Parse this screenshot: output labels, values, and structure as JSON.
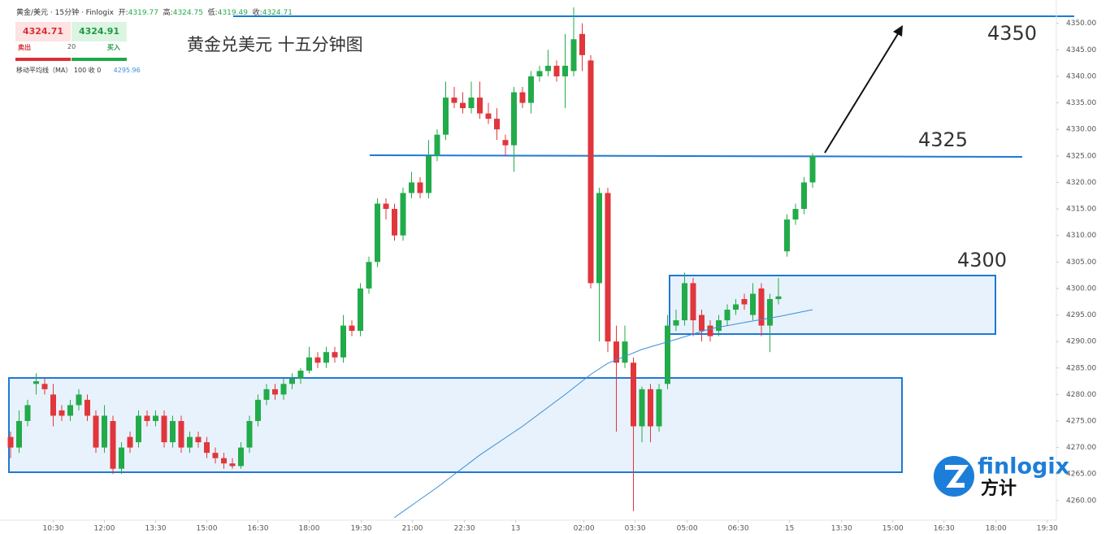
{
  "header": {
    "symbol": "黄金/美元 · 15分钟 · Finlogix",
    "open_label": "开:",
    "open": "4319.77",
    "high_label": "高:",
    "high": "4324.75",
    "low_label": "低:",
    "low": "4319.49",
    "close_label": "收:",
    "close": "4324.71",
    "sell_price": "4324.71",
    "sell": "卖出",
    "buy_price": "4324.91",
    "buy": "买入",
    "quantity": "20",
    "indicator": "移动平均线（MA） 100 收 0",
    "indicator_value": "4295.96",
    "logo": "finlogix",
    "logo_cn": "方计"
  },
  "chart_data": {
    "type": "candlestick",
    "title": "黄金兑美元 十五分钟图",
    "annotations": [
      "4350",
      "4325",
      "4300"
    ],
    "up_color": "#22ab4a",
    "down_color": "#e0363c",
    "x": [
      0,
      1,
      2,
      3,
      4,
      5,
      6,
      7,
      8,
      9,
      10,
      11,
      12,
      13,
      14,
      15,
      16,
      17,
      18,
      19,
      20,
      21,
      22,
      23,
      24,
      25,
      26,
      27,
      28,
      29,
      30,
      31,
      32,
      33,
      34,
      35,
      36,
      37,
      38,
      39,
      40,
      41,
      42,
      43,
      44,
      45,
      46,
      47,
      48,
      49,
      50,
      51,
      52,
      53,
      54,
      55,
      56,
      57,
      58,
      59,
      60,
      61,
      62,
      63,
      64,
      65,
      66,
      67,
      68,
      69,
      70,
      71,
      72,
      73,
      74,
      75,
      76,
      77,
      78,
      79,
      80,
      81,
      82,
      83,
      84,
      85,
      86,
      87,
      88,
      89,
      90,
      91,
      92,
      93,
      94
    ],
    "open": [
      4272,
      4270,
      4275,
      4282,
      4282,
      4280,
      4277,
      4276,
      4278,
      4279,
      4276,
      4270,
      4275,
      4266,
      4272,
      4271,
      4276,
      4275,
      4276,
      4271,
      4275,
      4270,
      4272,
      4271,
      4269,
      4268,
      4267,
      4266.5,
      4270,
      4275,
      4279,
      4281,
      4280,
      4282,
      4283,
      4284.5,
      4287,
      4286,
      4288,
      4287,
      4293,
      4292,
      4300,
      4305,
      4316,
      4315,
      4310,
      4318,
      4320,
      4318,
      4325,
      4329,
      4336,
      4335,
      4334,
      4336,
      4333,
      4332,
      4328,
      4327,
      4337,
      4335,
      4340,
      4341,
      4342,
      4340,
      4341,
      4348,
      4343,
      4301,
      4318,
      4290,
      4286,
      4286,
      4274,
      4281,
      4274,
      4282,
      4293,
      4294,
      4301,
      4295,
      4293,
      4292,
      4294,
      4296,
      4298,
      4295,
      4300,
      4293,
      4298,
      4307,
      4313,
      4315,
      4320
    ],
    "high": [
      4273,
      4277,
      4279,
      4284,
      4283,
      4282,
      4278,
      4279,
      4281,
      4280,
      4277,
      4278,
      4276,
      4271,
      4273,
      4277,
      4277,
      4277,
      4277,
      4276,
      4276,
      4273,
      4273,
      4272,
      4270,
      4269,
      4268,
      4271,
      4276,
      4280,
      4282,
      4282,
      4283,
      4284,
      4285,
      4289,
      4288,
      4289,
      4289,
      4295,
      4294,
      4301,
      4306,
      4317,
      4317,
      4316,
      4319,
      4322,
      4321,
      4328,
      4330,
      4339,
      4338,
      4337,
      4339,
      4339,
      4335,
      4334,
      4329,
      4338,
      4338,
      4341,
      4342,
      4345,
      4343,
      4348,
      4353,
      4350,
      4344,
      4319,
      4319,
      4293,
      4293,
      4287,
      4281.5,
      4282,
      4282,
      4295,
      4296,
      4303,
      4302,
      4296,
      4294,
      4295,
      4297,
      4298,
      4299,
      4301,
      4301,
      4299,
      4302,
      4314,
      4316,
      4321,
      4325.5
    ],
    "low": [
      4268,
      4269,
      4274,
      4280,
      4280,
      4274,
      4275,
      4275,
      4277,
      4275,
      4269,
      4269,
      4265,
      4265,
      4269,
      4270,
      4274,
      4274,
      4270,
      4270,
      4269,
      4269,
      4270,
      4268,
      4267,
      4266,
      4266,
      4266,
      4269,
      4274,
      4278,
      4279,
      4279,
      4281,
      4282,
      4284,
      4285,
      4285,
      4286,
      4286,
      4291,
      4291,
      4299,
      4304,
      4313,
      4309,
      4309,
      4317,
      4317,
      4317,
      4324,
      4328,
      4334,
      4333,
      4333,
      4332,
      4331,
      4328,
      4325,
      4322,
      4334,
      4333,
      4339,
      4340,
      4339,
      4334,
      4340,
      4341,
      4300,
      4290,
      4288,
      4273,
      4285,
      4258,
      4271,
      4271,
      4273,
      4281,
      4292,
      4293,
      4291,
      4290,
      4290,
      4291,
      4293,
      4295,
      4296,
      4294,
      4291,
      4288,
      4297,
      4306,
      4312,
      4314,
      4319
    ],
    "close": [
      4270,
      4275,
      4278,
      4282.5,
      4281,
      4276,
      4276,
      4278,
      4280,
      4276,
      4270,
      4276,
      4266,
      4270,
      4270,
      4276,
      4275,
      4276,
      4271,
      4275,
      4270,
      4272,
      4271,
      4269,
      4268,
      4267,
      4266.5,
      4270,
      4275,
      4279,
      4281,
      4280,
      4282,
      4283,
      4284.5,
      4287,
      4286,
      4288,
      4287,
      4293,
      4292,
      4300,
      4305,
      4316,
      4315,
      4310,
      4318,
      4320,
      4318,
      4325,
      4329,
      4336,
      4335,
      4334,
      4336,
      4333,
      4332,
      4330,
      4327,
      4337,
      4335,
      4340,
      4341,
      4342,
      4340,
      4342,
      4347,
      4344,
      4301,
      4318,
      4290,
      4286,
      4290,
      4274,
      4281,
      4274,
      4281,
      4293,
      4294,
      4301,
      4294,
      4292,
      4291,
      4294,
      4296,
      4297,
      4297,
      4299,
      4293,
      4298,
      4298.5,
      4313,
      4315,
      4320,
      4325
    ],
    "ma": {
      "color": "#3a8fd6",
      "x": [
        45,
        50,
        55,
        60,
        65,
        68,
        70,
        74,
        78,
        82,
        86,
        90,
        94
      ],
      "values": [
        4256.8,
        4262.5,
        4268.6,
        4274,
        4280,
        4283.8,
        4285.9,
        4288.5,
        4290.4,
        4292.4,
        4293.6,
        4294.7,
        4296
      ]
    },
    "xlim": [
      -1.238,
      122.571
    ],
    "ylim": [
      4256.3,
      4354.4
    ],
    "xticks": [
      {
        "value": 5,
        "label": "10:30"
      },
      {
        "value": 11,
        "label": "12:00"
      },
      {
        "value": 17,
        "label": "13:30"
      },
      {
        "value": 23,
        "label": "15:00"
      },
      {
        "value": 29,
        "label": "16:30"
      },
      {
        "value": 35,
        "label": "18:00"
      },
      {
        "value": 41.1,
        "label": "19:30"
      },
      {
        "value": 47.1,
        "label": "21:00"
      },
      {
        "value": 53.2,
        "label": "22:30"
      },
      {
        "value": 59.2,
        "label": "13"
      },
      {
        "value": 67.2,
        "label": "02:00"
      },
      {
        "value": 73.2,
        "label": "03:30"
      },
      {
        "value": 79.3,
        "label": "05:00"
      },
      {
        "value": 85.3,
        "label": "06:30"
      },
      {
        "value": 91.3,
        "label": "15"
      },
      {
        "value": 97.4,
        "label": "13:30"
      },
      {
        "value": 103.4,
        "label": "15:00"
      },
      {
        "value": 109.4,
        "label": "16:30"
      },
      {
        "value": 115.5,
        "label": "18:00"
      },
      {
        "value": 121.5,
        "label": "19:30"
      }
    ],
    "yticks": [
      {
        "value": 4260,
        "label": "4260.00"
      },
      {
        "value": 4265,
        "label": "4265.00"
      },
      {
        "value": 4270,
        "label": "4270.00"
      },
      {
        "value": 4275,
        "label": "4275.00"
      },
      {
        "value": 4280,
        "label": "4280.00"
      },
      {
        "value": 4285,
        "label": "4285.00"
      },
      {
        "value": 4290,
        "label": "4290.00"
      },
      {
        "value": 4295,
        "label": "4295.00"
      },
      {
        "value": 4300,
        "label": "4300.00"
      },
      {
        "value": 4305,
        "label": "4305.00"
      },
      {
        "value": 4310,
        "label": "4310.00"
      },
      {
        "value": 4315,
        "label": "4315.00"
      },
      {
        "value": 4320,
        "label": "4320.00"
      },
      {
        "value": 4325,
        "label": "4325.00"
      },
      {
        "value": 4330,
        "label": "4330.00"
      },
      {
        "value": 4335,
        "label": "4335.00"
      },
      {
        "value": 4340,
        "label": "4340.00"
      },
      {
        "value": 4345,
        "label": "4345.00"
      },
      {
        "value": 4350,
        "label": "4350.00"
      }
    ]
  }
}
